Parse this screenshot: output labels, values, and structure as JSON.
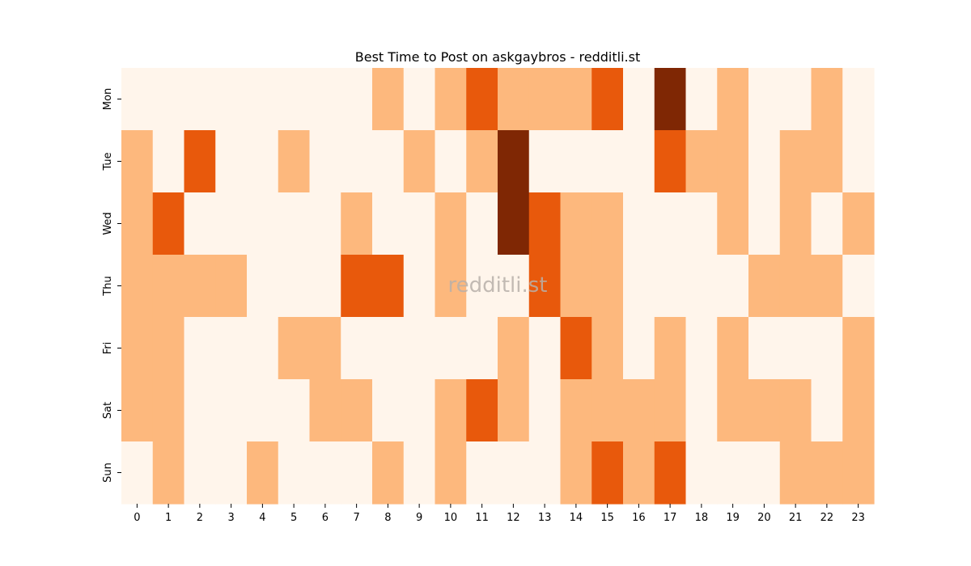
{
  "chart_data": {
    "type": "heatmap",
    "title": "Best Time to Post on askgaybros - redditli.st",
    "watermark": "redditli.st",
    "xlabel": "",
    "ylabel": "",
    "x": [
      "0",
      "1",
      "2",
      "3",
      "4",
      "5",
      "6",
      "7",
      "8",
      "9",
      "10",
      "11",
      "12",
      "13",
      "14",
      "15",
      "16",
      "17",
      "18",
      "19",
      "20",
      "21",
      "22",
      "23"
    ],
    "y": [
      "Mon",
      "Tue",
      "Wed",
      "Thu",
      "Fri",
      "Sat",
      "Sun"
    ],
    "values": [
      [
        0,
        0,
        0,
        0,
        0,
        0,
        0,
        0,
        1,
        0,
        1,
        2,
        1,
        1,
        1,
        2,
        0,
        3,
        0,
        1,
        0,
        0,
        1,
        0
      ],
      [
        1,
        0,
        2,
        0,
        0,
        1,
        0,
        0,
        0,
        1,
        0,
        1,
        3,
        0,
        0,
        0,
        0,
        2,
        1,
        1,
        0,
        1,
        1,
        0
      ],
      [
        1,
        2,
        0,
        0,
        0,
        0,
        0,
        1,
        0,
        0,
        1,
        0,
        3,
        2,
        1,
        1,
        0,
        0,
        0,
        1,
        0,
        1,
        0,
        1
      ],
      [
        1,
        1,
        1,
        1,
        0,
        0,
        0,
        2,
        2,
        0,
        1,
        0,
        0,
        2,
        1,
        1,
        0,
        0,
        0,
        0,
        1,
        1,
        1,
        0
      ],
      [
        1,
        1,
        0,
        0,
        0,
        1,
        1,
        0,
        0,
        0,
        0,
        0,
        1,
        0,
        2,
        1,
        0,
        1,
        0,
        1,
        0,
        0,
        0,
        1
      ],
      [
        1,
        1,
        0,
        0,
        0,
        0,
        1,
        1,
        0,
        0,
        1,
        2,
        1,
        0,
        1,
        1,
        1,
        1,
        0,
        1,
        1,
        1,
        0,
        1
      ],
      [
        0,
        1,
        0,
        0,
        1,
        0,
        0,
        0,
        1,
        0,
        1,
        0,
        0,
        0,
        1,
        2,
        1,
        2,
        0,
        0,
        0,
        1,
        1,
        1
      ]
    ],
    "value_range": [
      0,
      3
    ],
    "colormap": [
      "#fff5eb",
      "#fdb87d",
      "#e8590c",
      "#7f2704"
    ],
    "colorbar": false,
    "grid": false
  }
}
